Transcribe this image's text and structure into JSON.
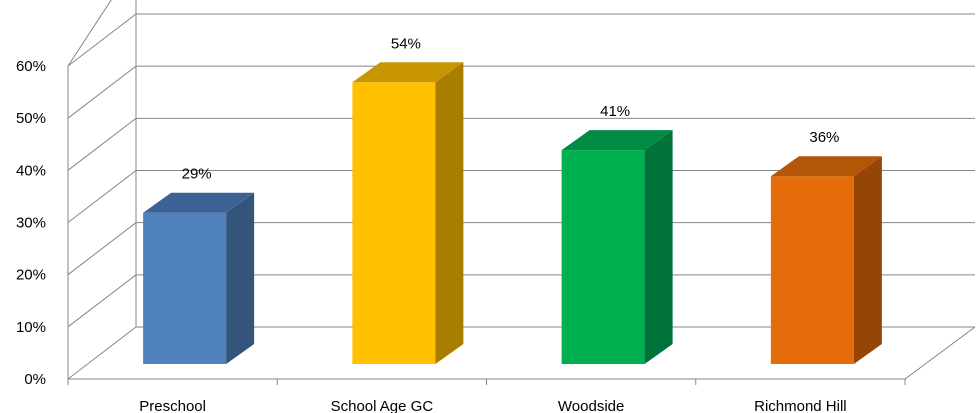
{
  "chart_data": {
    "type": "bar",
    "title": "",
    "xlabel": "",
    "ylabel": "",
    "categories": [
      "Preschool",
      "School Age GC",
      "Woodside",
      "Richmond Hill"
    ],
    "values": [
      29,
      54,
      41,
      36
    ],
    "data_labels": [
      "29%",
      "54%",
      "41%",
      "36%"
    ],
    "ylim": [
      0,
      60
    ],
    "yticks": [
      0,
      10,
      20,
      30,
      40,
      50,
      60
    ],
    "ytick_labels": [
      "0%",
      "10%",
      "20%",
      "30%",
      "40%",
      "50%",
      "60%"
    ],
    "grid": true,
    "legend": false,
    "style": "3d-column",
    "colors": {
      "front": [
        "#4f81bd",
        "#ffc000",
        "#00b050",
        "#e46c0a"
      ],
      "side": [
        "#34557b",
        "#a77e00",
        "#00733a",
        "#954607"
      ],
      "top": [
        "#3c6394",
        "#c89600",
        "#008a44",
        "#b35608"
      ],
      "grid": "#868686"
    }
  }
}
